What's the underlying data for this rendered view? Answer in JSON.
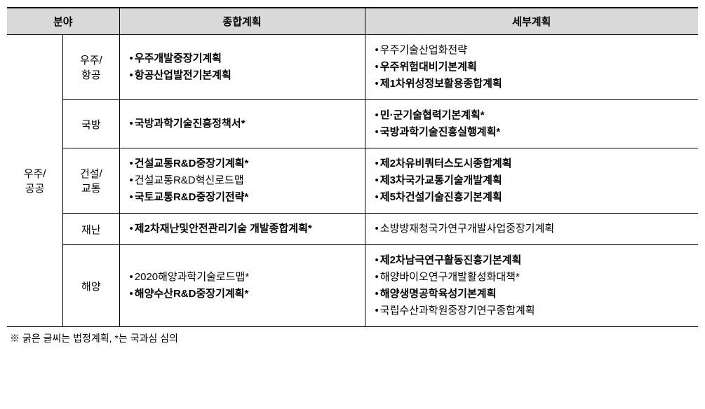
{
  "headers": {
    "field": "분야",
    "comprehensive": "종합계획",
    "detail": "세부계획"
  },
  "main_category": "우주/\n공공",
  "rows": [
    {
      "sub": "우주/\n항공",
      "comp": [
        {
          "text": "우주개발중장기계획",
          "bold": true
        },
        {
          "text": "항공산업발전기본계획",
          "bold": true
        }
      ],
      "detail": [
        {
          "text": "우주기술산업화전략",
          "bold": false
        },
        {
          "text": "우주위험대비기본계획",
          "bold": true
        },
        {
          "text": "제1차위성정보활용종합계획",
          "bold": true
        }
      ]
    },
    {
      "sub": "국방",
      "comp": [
        {
          "text": "국방과학기술진흥정책서*",
          "bold": true
        }
      ],
      "detail": [
        {
          "text": "민·군기술협력기본계획*",
          "bold": true
        },
        {
          "text": "국방과학기술진흥실행계획*",
          "bold": true
        }
      ]
    },
    {
      "sub": "건설/\n교통",
      "comp": [
        {
          "text": "건설교통R&D중장기계획*",
          "bold": true
        },
        {
          "text": "건설교통R&D혁신로드맵",
          "bold": false
        },
        {
          "text": "국토교통R&D중장기전략*",
          "bold": true
        }
      ],
      "detail": [
        {
          "text": "제2차유비쿼터스도시종합계획",
          "bold": true
        },
        {
          "text": "제3차국가교통기술개발계획",
          "bold": true
        },
        {
          "text": "제5차건설기술진흥기본계획",
          "bold": true
        }
      ]
    },
    {
      "sub": "재난",
      "comp": [
        {
          "text": "제2차재난및안전관리기술 개발종합계획*",
          "bold": true
        }
      ],
      "detail": [
        {
          "text": "소방방재청국가연구개발사업중장기계획",
          "bold": false
        }
      ]
    },
    {
      "sub": "해양",
      "comp": [
        {
          "text": "2020해양과학기술로드맵*",
          "bold": false
        },
        {
          "text": "해양수산R&D중장기계획*",
          "bold": true
        }
      ],
      "detail": [
        {
          "text": "제2차남극연구활동진흥기본계획",
          "bold": true
        },
        {
          "text": "해양바이오연구개발활성화대책*",
          "bold": false
        },
        {
          "text": "해양생명공학육성기본계획",
          "bold": true
        },
        {
          "text": "국립수산과학원중장기연구종합계획",
          "bold": false
        }
      ]
    }
  ],
  "footnote": "※ 굵은 글씨는 법정계획, *는 국과심 심의"
}
